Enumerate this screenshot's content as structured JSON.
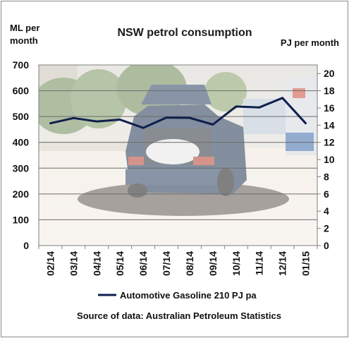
{
  "chart_data": {
    "type": "line",
    "title": "NSW petrol consumption",
    "ylabel_left": [
      "ML per",
      "month"
    ],
    "ylabel_right": "PJ per month",
    "categories": [
      "02/14",
      "03/14",
      "04/14",
      "05/14",
      "06/14",
      "07/14",
      "08/14",
      "09/14",
      "10/14",
      "11/14",
      "12/14",
      "01/15"
    ],
    "ylim_left": [
      0,
      700
    ],
    "yticks_left": [
      0,
      100,
      200,
      300,
      400,
      500,
      600,
      700
    ],
    "ylim_right": [
      0,
      21
    ],
    "yticks_right": [
      0,
      2,
      4,
      6,
      8,
      10,
      12,
      14,
      16,
      18,
      20
    ],
    "series": [
      {
        "name": "Automotive Gasoline 210 PJ pa",
        "color": "#0f1f4d",
        "values": [
          474,
          494,
          481,
          488,
          456,
          496,
          495,
          469,
          539,
          535,
          572,
          474
        ]
      }
    ],
    "grid": "horizontal",
    "legend_position": "bottom",
    "source_note": "Source of data: Australian Petroleum Statistics",
    "background_image": "car-refuelling-photo"
  }
}
